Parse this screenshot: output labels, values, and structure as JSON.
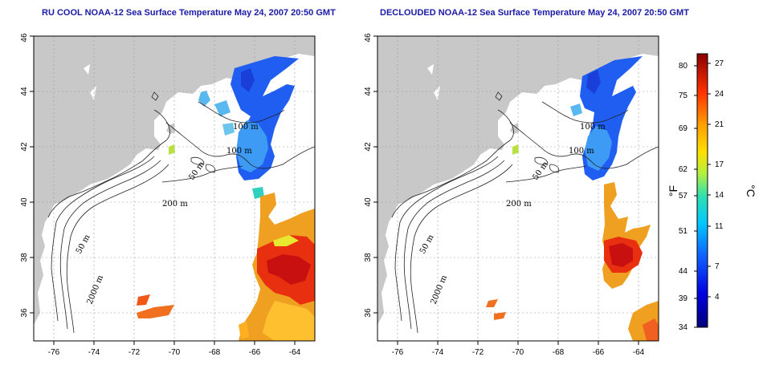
{
  "panels": [
    {
      "title": "RU COOL NOAA-12 Sea Surface Temperature May 24, 2007 20:50 GMT",
      "contour_labels": [
        "100 m",
        "100 m",
        "50 m",
        "200 m",
        "50 m",
        "2000 m"
      ]
    },
    {
      "title": "DECLOUDED NOAA-12 Sea Surface Temperature May 24, 2007 20:50 GMT",
      "contour_labels": [
        "100 m",
        "100 m",
        "50 m",
        "200 m",
        "50 m",
        "2000 m"
      ]
    }
  ],
  "axes": {
    "lon_ticks": [
      "-76",
      "-74",
      "-72",
      "-70",
      "-68",
      "-66",
      "-64"
    ],
    "lat_ticks": [
      "36",
      "38",
      "40",
      "42",
      "44",
      "46"
    ],
    "lon_range": [
      -77,
      -63
    ],
    "lat_range": [
      35,
      46
    ]
  },
  "colorbar": {
    "fahrenheit_ticks": [
      "80",
      "75",
      "69",
      "62",
      "57",
      "51",
      "44",
      "39",
      "34"
    ],
    "celsius_ticks": [
      "27",
      "24",
      "21",
      "17",
      "14",
      "11",
      "7",
      "4"
    ],
    "fahrenheit_unit": "°F",
    "celsius_unit": "°C",
    "range_c": [
      1,
      28
    ]
  },
  "colors": {
    "land": "#c8c8c8",
    "ocean": "#ffffff",
    "title": "#1a1aa6"
  }
}
